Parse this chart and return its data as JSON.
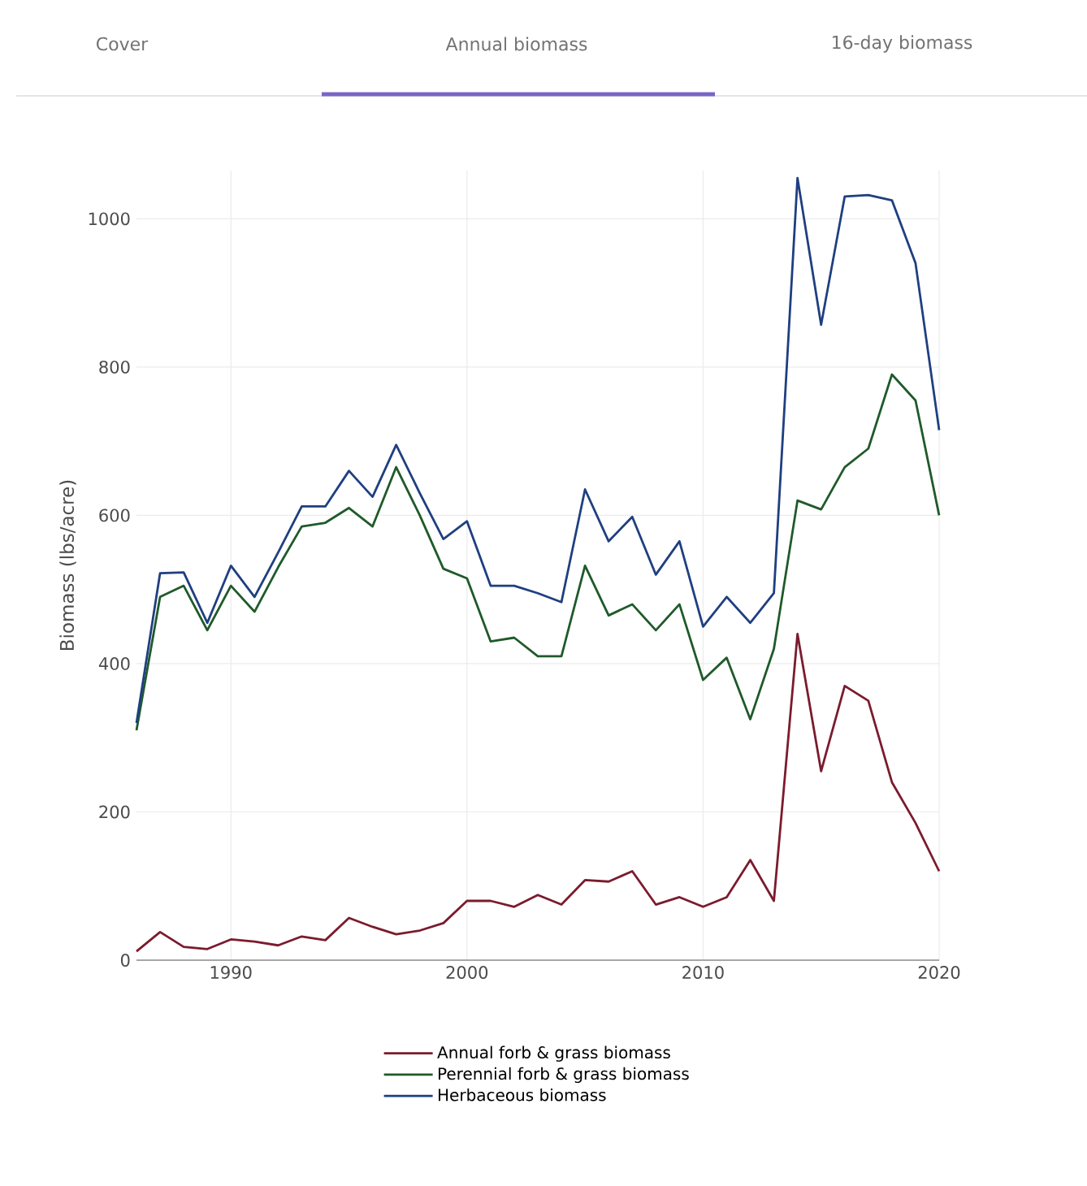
{
  "chart_data": {
    "type": "line",
    "annotations": [
      "Cover",
      "Annual biomass",
      "16-day biomass"
    ],
    "ylabel": "Biomass (lbs/acre)",
    "x": [
      1986,
      1987,
      1988,
      1989,
      1990,
      1991,
      1992,
      1993,
      1994,
      1995,
      1996,
      1997,
      1998,
      1999,
      2000,
      2001,
      2002,
      2003,
      2004,
      2005,
      2006,
      2007,
      2008,
      2009,
      2010,
      2011,
      2012,
      2013,
      2014,
      2015,
      2016,
      2017,
      2018,
      2019,
      2020
    ],
    "series": [
      {
        "name": "Annual forb & grass biomass",
        "color": "#7b1b2e",
        "values": [
          12,
          38,
          18,
          15,
          28,
          25,
          20,
          32,
          27,
          57,
          45,
          35,
          40,
          50,
          80,
          80,
          72,
          88,
          75,
          108,
          106,
          120,
          75,
          85,
          72,
          85,
          135,
          80,
          440,
          255,
          370,
          350,
          240,
          185,
          120
        ]
      },
      {
        "name": "Perennial forb & grass biomass",
        "color": "#1f5a2a",
        "values": [
          310,
          490,
          505,
          445,
          505,
          470,
          530,
          585,
          590,
          610,
          585,
          665,
          600,
          528,
          515,
          430,
          435,
          410,
          410,
          532,
          465,
          480,
          445,
          480,
          378,
          408,
          325,
          420,
          620,
          608,
          665,
          690,
          790,
          755,
          600
        ]
      },
      {
        "name": "Herbaceous biomass",
        "color": "#1f3f80",
        "values": [
          320,
          522,
          523,
          455,
          532,
          490,
          550,
          612,
          612,
          660,
          625,
          695,
          630,
          568,
          592,
          505,
          505,
          495,
          483,
          635,
          565,
          598,
          520,
          565,
          450,
          490,
          455,
          495,
          1055,
          857,
          1030,
          1032,
          1025,
          940,
          715
        ]
      }
    ],
    "xlim": [
      1986,
      2020
    ],
    "ylim": [
      0,
      1065
    ],
    "xticks": [
      1990,
      2000,
      2010,
      2020
    ],
    "yticks": [
      0,
      200,
      400,
      600,
      800,
      1000
    ],
    "grid": true,
    "legend": "bottom",
    "marker": "none",
    "line_style": "solid"
  }
}
